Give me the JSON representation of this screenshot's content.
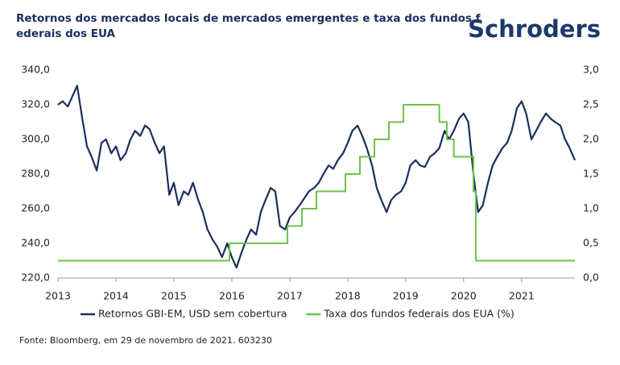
{
  "chart_data": {
    "type": "line",
    "title_lines": [
      "Retornos dos mercados locais de mercados emergentes e taxa dos fundos f",
      "ederais dos EUA"
    ],
    "brand": "Schroders",
    "source": "Fonte: Bloomberg, em 29 de novembro de 2021. 603230",
    "xlim": [
      2013,
      2021.92
    ],
    "xticks": [
      2013,
      2014,
      2015,
      2016,
      2017,
      2018,
      2019,
      2020,
      2021
    ],
    "ylim": [
      220,
      340
    ],
    "yticks": [
      {
        "value": 220,
        "label": "220,0"
      },
      {
        "value": 240,
        "label": "240,0"
      },
      {
        "value": 260,
        "label": "260,0"
      },
      {
        "value": 280,
        "label": "280,0"
      },
      {
        "value": 300,
        "label": "300,0"
      },
      {
        "value": 320,
        "label": "320,0"
      },
      {
        "value": 340,
        "label": "340,0"
      }
    ],
    "y2lim": [
      0,
      3
    ],
    "y2ticks": [
      {
        "value": 0,
        "label": "0,0"
      },
      {
        "value": 0.5,
        "label": "0,5"
      },
      {
        "value": 1,
        "label": "1,0"
      },
      {
        "value": 1.5,
        "label": "1,5"
      },
      {
        "value": 2,
        "label": "2,0"
      },
      {
        "value": 2.5,
        "label": "2,5"
      },
      {
        "value": 3,
        "label": "3,0"
      }
    ],
    "series": [
      {
        "name": "Retornos GBI-EM, USD sem cobertura",
        "color": "#1b2f5e",
        "axis": "y",
        "x": [
          2013,
          2013.08,
          2013.17,
          2013.25,
          2013.33,
          2013.42,
          2013.5,
          2013.58,
          2013.67,
          2013.75,
          2013.83,
          2013.92,
          2014,
          2014.08,
          2014.17,
          2014.25,
          2014.33,
          2014.42,
          2014.5,
          2014.58,
          2014.67,
          2014.75,
          2014.83,
          2014.92,
          2015,
          2015.08,
          2015.17,
          2015.25,
          2015.33,
          2015.42,
          2015.5,
          2015.58,
          2015.67,
          2015.75,
          2015.83,
          2015.92,
          2016,
          2016.08,
          2016.17,
          2016.25,
          2016.33,
          2016.42,
          2016.5,
          2016.58,
          2016.67,
          2016.75,
          2016.83,
          2016.92,
          2017,
          2017.08,
          2017.17,
          2017.25,
          2017.33,
          2017.42,
          2017.5,
          2017.58,
          2017.67,
          2017.75,
          2017.83,
          2017.92,
          2018,
          2018.08,
          2018.17,
          2018.25,
          2018.33,
          2018.42,
          2018.5,
          2018.58,
          2018.67,
          2018.75,
          2018.83,
          2018.92,
          2019,
          2019.08,
          2019.17,
          2019.25,
          2019.33,
          2019.42,
          2019.5,
          2019.58,
          2019.67,
          2019.75,
          2019.83,
          2019.92,
          2020,
          2020.08,
          2020.17,
          2020.25,
          2020.33,
          2020.42,
          2020.5,
          2020.58,
          2020.67,
          2020.75,
          2020.83,
          2020.92,
          2021,
          2021.08,
          2021.17,
          2021.25,
          2021.33,
          2021.42,
          2021.5,
          2021.58,
          2021.67,
          2021.75,
          2021.83,
          2021.92
        ],
        "values": [
          320,
          322,
          319,
          325,
          331,
          312,
          296,
          290,
          282,
          298,
          300,
          292,
          296,
          288,
          292,
          300,
          305,
          302,
          308,
          306,
          298,
          292,
          296,
          268,
          275,
          262,
          270,
          268,
          275,
          265,
          258,
          248,
          242,
          238,
          232,
          240,
          232,
          226,
          235,
          242,
          248,
          245,
          258,
          265,
          272,
          270,
          250,
          248,
          255,
          258,
          262,
          266,
          270,
          272,
          275,
          280,
          285,
          283,
          288,
          292,
          298,
          305,
          308,
          302,
          295,
          285,
          272,
          265,
          258,
          265,
          268,
          270,
          275,
          285,
          288,
          285,
          284,
          290,
          292,
          295,
          305,
          300,
          305,
          312,
          315,
          310,
          280,
          258,
          262,
          275,
          285,
          290,
          295,
          298,
          305,
          318,
          322,
          315,
          300,
          305,
          310,
          315,
          312,
          310,
          308,
          300,
          295,
          288
        ]
      },
      {
        "name": "Taxa dos fundos federais dos EUA (%)",
        "color": "#6cc24a",
        "axis": "y2",
        "x": [
          2013,
          2015.96,
          2015.96,
          2016.96,
          2016.96,
          2017.21,
          2017.21,
          2017.46,
          2017.46,
          2017.96,
          2017.96,
          2018.21,
          2018.21,
          2018.46,
          2018.46,
          2018.71,
          2018.71,
          2018.96,
          2018.96,
          2019.58,
          2019.58,
          2019.71,
          2019.71,
          2019.83,
          2019.83,
          2020.17,
          2020.17,
          2020.21,
          2020.21,
          2021.92
        ],
        "values": [
          0.25,
          0.25,
          0.5,
          0.5,
          0.75,
          0.75,
          1,
          1,
          1.25,
          1.25,
          1.5,
          1.5,
          1.75,
          1.75,
          2,
          2,
          2.25,
          2.25,
          2.5,
          2.5,
          2.25,
          2.25,
          2,
          2,
          1.75,
          1.75,
          1.25,
          1.25,
          0.25,
          0.25
        ]
      }
    ]
  }
}
